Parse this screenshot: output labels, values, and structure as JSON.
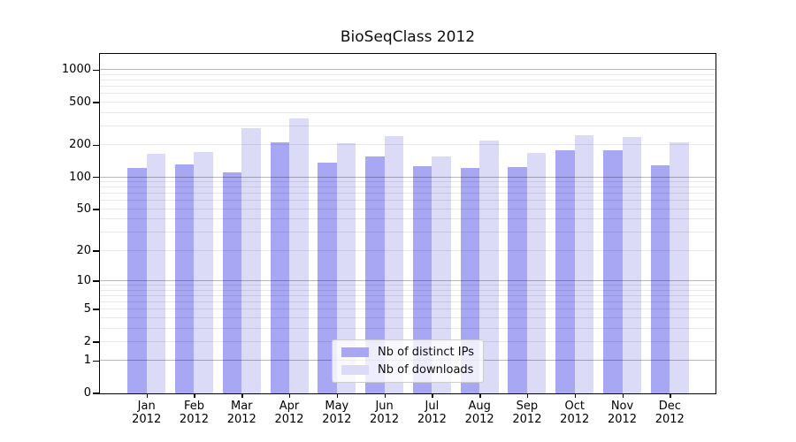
{
  "title": "BioSeqClass 2012",
  "chart_data": {
    "type": "bar",
    "title": "BioSeqClass 2012",
    "categories": [
      "Jan",
      "Feb",
      "Mar",
      "Apr",
      "May",
      "Jun",
      "Jul",
      "Aug",
      "Sep",
      "Oct",
      "Nov",
      "Dec"
    ],
    "x_year_label": "2012",
    "series": [
      {
        "name": "Nb of distinct IPs",
        "color": "#a7a7f3",
        "values": [
          122,
          133,
          111,
          213,
          138,
          157,
          127,
          123,
          126,
          180,
          180,
          131
        ]
      },
      {
        "name": "Nb of downloads",
        "color": "#dbdbf8",
        "values": [
          165,
          172,
          290,
          355,
          209,
          245,
          157,
          220,
          169,
          247,
          237,
          212
        ]
      }
    ],
    "yscale": "log1p",
    "y_ticks": [
      0,
      1,
      2,
      5,
      10,
      20,
      50,
      100,
      200,
      500,
      1000
    ],
    "ylim": [
      0,
      1410
    ],
    "grid": "on",
    "grid_above_bars": true,
    "legend_position": "lower center",
    "colors": {
      "axis": "#000000",
      "major_grid": "#b8b8b8",
      "minor_grid": "#e9e9e9",
      "background": "#ffffff"
    }
  }
}
